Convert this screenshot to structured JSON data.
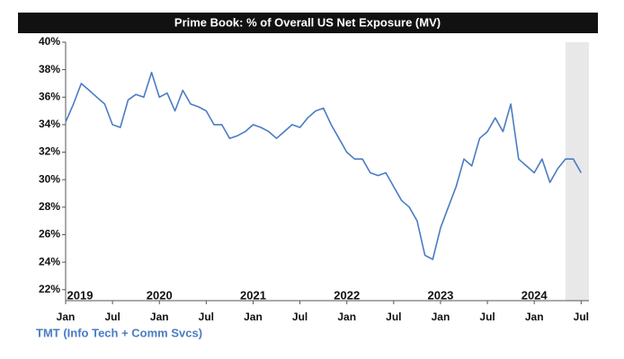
{
  "chart_data": {
    "type": "line",
    "title": "Prime Book: % of Overall US Net Exposure (MV)",
    "x": [
      "2019-01",
      "2019-02",
      "2019-03",
      "2019-04",
      "2019-05",
      "2019-06",
      "2019-07",
      "2019-08",
      "2019-09",
      "2019-10",
      "2019-11",
      "2019-12",
      "2020-01",
      "2020-02",
      "2020-03",
      "2020-04",
      "2020-05",
      "2020-06",
      "2020-07",
      "2020-08",
      "2020-09",
      "2020-10",
      "2020-11",
      "2020-12",
      "2021-01",
      "2021-02",
      "2021-03",
      "2021-04",
      "2021-05",
      "2021-06",
      "2021-07",
      "2021-08",
      "2021-09",
      "2021-10",
      "2021-11",
      "2021-12",
      "2022-01",
      "2022-02",
      "2022-03",
      "2022-04",
      "2022-05",
      "2022-06",
      "2022-07",
      "2022-08",
      "2022-09",
      "2022-10",
      "2022-11",
      "2022-12",
      "2023-01",
      "2023-02",
      "2023-03",
      "2023-04",
      "2023-05",
      "2023-06",
      "2023-07",
      "2023-08",
      "2023-09",
      "2023-10",
      "2023-11",
      "2023-12",
      "2024-01",
      "2024-02",
      "2024-03",
      "2024-04",
      "2024-05",
      "2024-06",
      "2024-07"
    ],
    "series": [
      {
        "name": "TMT (Info Tech + Comm Svcs)",
        "color": "#4a7cc4",
        "values": [
          34.2,
          35.5,
          37.0,
          36.5,
          36.0,
          35.5,
          34.0,
          33.8,
          35.8,
          36.2,
          36.0,
          37.8,
          36.0,
          36.3,
          35.0,
          36.5,
          35.5,
          35.3,
          35.0,
          34.0,
          34.0,
          33.0,
          33.2,
          33.5,
          34.0,
          33.8,
          33.5,
          33.0,
          33.5,
          34.0,
          33.8,
          34.5,
          35.0,
          35.2,
          34.0,
          33.0,
          32.0,
          31.5,
          31.5,
          30.5,
          30.3,
          30.5,
          29.5,
          28.5,
          28.0,
          27.0,
          24.5,
          24.2,
          26.5,
          28.0,
          29.5,
          31.5,
          31.0,
          33.0,
          33.5,
          34.5,
          33.5,
          35.5,
          31.5,
          31.0,
          30.5,
          31.5,
          29.8,
          30.8,
          31.5,
          31.5,
          30.5
        ]
      }
    ],
    "xlim": [
      "2019-01",
      "2024-08"
    ],
    "xticks": [
      {
        "value": "2019-01",
        "label": "Jan"
      },
      {
        "value": "2019-07",
        "label": "Jul"
      },
      {
        "value": "2020-01",
        "label": "Jan"
      },
      {
        "value": "2020-07",
        "label": "Jul"
      },
      {
        "value": "2021-01",
        "label": "Jan"
      },
      {
        "value": "2021-07",
        "label": "Jul"
      },
      {
        "value": "2022-01",
        "label": "Jan"
      },
      {
        "value": "2022-07",
        "label": "Jul"
      },
      {
        "value": "2023-01",
        "label": "Jan"
      },
      {
        "value": "2023-07",
        "label": "Jul"
      },
      {
        "value": "2024-01",
        "label": "Jan"
      },
      {
        "value": "2024-07",
        "label": "Jul"
      }
    ],
    "year_labels": [
      {
        "value": "2019-01",
        "label": "2019"
      },
      {
        "value": "2020-01",
        "label": "2020"
      },
      {
        "value": "2021-01",
        "label": "2021"
      },
      {
        "value": "2022-01",
        "label": "2022"
      },
      {
        "value": "2023-01",
        "label": "2023"
      },
      {
        "value": "2024-01",
        "label": "2024"
      }
    ],
    "highlight_range": [
      "2024-05",
      "2024-08"
    ],
    "ylim": [
      21.2,
      40
    ],
    "yticks": [
      {
        "value": 22,
        "label": "22%"
      },
      {
        "value": 24,
        "label": "24%"
      },
      {
        "value": 26,
        "label": "26%"
      },
      {
        "value": 28,
        "label": "28%"
      },
      {
        "value": 30,
        "label": "30%"
      },
      {
        "value": 32,
        "label": "32%"
      },
      {
        "value": 34,
        "label": "34%"
      },
      {
        "value": 36,
        "label": "36%"
      },
      {
        "value": 38,
        "label": "38%"
      },
      {
        "value": 40,
        "label": "40%"
      }
    ]
  }
}
